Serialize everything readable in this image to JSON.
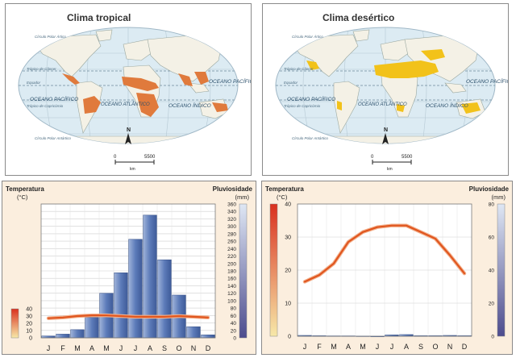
{
  "maps": [
    {
      "title": "Clima tropical",
      "highlight_color": "#e07a3c",
      "labels": {
        "ocean_pacific_left": "OCEANO PACÍFICO",
        "ocean_atlantic": "OCEANO ATLÂNTICO",
        "ocean_indian": "OCEANO ÍNDICO",
        "ocean_pacific_right": "OCEANO PACÍFICO",
        "equator": "Equador",
        "tropic_cancer": "Trópico de Câncer",
        "tropic_capricorn": "Trópico de Capricórnio",
        "arctic_circle": "Círculo Polar Ártico",
        "antarctic_circle": "Círculo Polar Antártico",
        "north": "N",
        "scale_start": "0",
        "scale_end": "5500",
        "scale_unit": "km"
      }
    },
    {
      "title": "Clima desértico",
      "highlight_color": "#f2c21a",
      "labels": {
        "ocean_pacific_left": "OCEANO PACÍFICO",
        "ocean_atlantic": "OCEANO ATLÂNTICO",
        "ocean_indian": "OCEANO ÍNDICO",
        "ocean_pacific_right": "OCEANO PACÍFICO",
        "equator": "Equador",
        "tropic_cancer": "Trópico de Câncer",
        "tropic_capricorn": "Trópico de Capricórnio",
        "arctic_circle": "Círculo Polar Ártico",
        "antarctic_circle": "Círculo Polar Antártico",
        "north": "N",
        "scale_start": "0",
        "scale_end": "5500",
        "scale_unit": "km"
      }
    }
  ],
  "chart_data": [
    {
      "type": "bar+line",
      "categories": [
        "J",
        "F",
        "M",
        "A",
        "M",
        "J",
        "J",
        "A",
        "S",
        "O",
        "N",
        "D"
      ],
      "temp_label": "Temperatura",
      "temp_unit": "(°C)",
      "precip_label": "Pluviosidade",
      "precip_unit": "(mm)",
      "temp_ticks": [
        "0",
        "10",
        "20",
        "30",
        "40"
      ],
      "precip_ticks": [
        "0",
        "20",
        "40",
        "60",
        "80",
        "100",
        "120",
        "140",
        "160",
        "180",
        "200",
        "220",
        "240",
        "260",
        "280",
        "300",
        "320",
        "340",
        "360"
      ],
      "temp_range": [
        0,
        40
      ],
      "precip_range": [
        0,
        360
      ],
      "temperature": [
        27,
        28,
        30,
        31,
        31,
        30,
        29,
        29,
        29,
        30,
        29,
        28
      ],
      "precipitation": [
        5,
        10,
        22,
        55,
        120,
        175,
        265,
        330,
        210,
        115,
        30,
        8
      ],
      "bar_color": "#5b78b6",
      "line_color": "#e0561f",
      "grid": true
    },
    {
      "type": "bar+line",
      "categories": [
        "J",
        "F",
        "M",
        "A",
        "M",
        "J",
        "J",
        "A",
        "S",
        "O",
        "N",
        "D"
      ],
      "temp_label": "Temperatura",
      "temp_unit": "(°C)",
      "precip_label": "Pluviosidade",
      "precip_unit": "(mm)",
      "temp_ticks": [
        "0",
        "10",
        "20",
        "30",
        "40"
      ],
      "precip_ticks": [
        "0",
        "20",
        "40",
        "60",
        "80"
      ],
      "temp_range": [
        0,
        40
      ],
      "precip_range": [
        0,
        80
      ],
      "temperature": [
        16.5,
        18.5,
        22,
        28.5,
        31.5,
        33,
        33.5,
        33.5,
        31.5,
        29.5,
        24.5,
        19
      ],
      "precipitation": [
        0.5,
        0.3,
        0.2,
        0.2,
        0.1,
        0,
        0.8,
        1,
        0.3,
        0.3,
        0.5,
        0.3
      ],
      "bar_color": "#5b78b6",
      "line_color": "#e0561f",
      "grid": true
    }
  ]
}
